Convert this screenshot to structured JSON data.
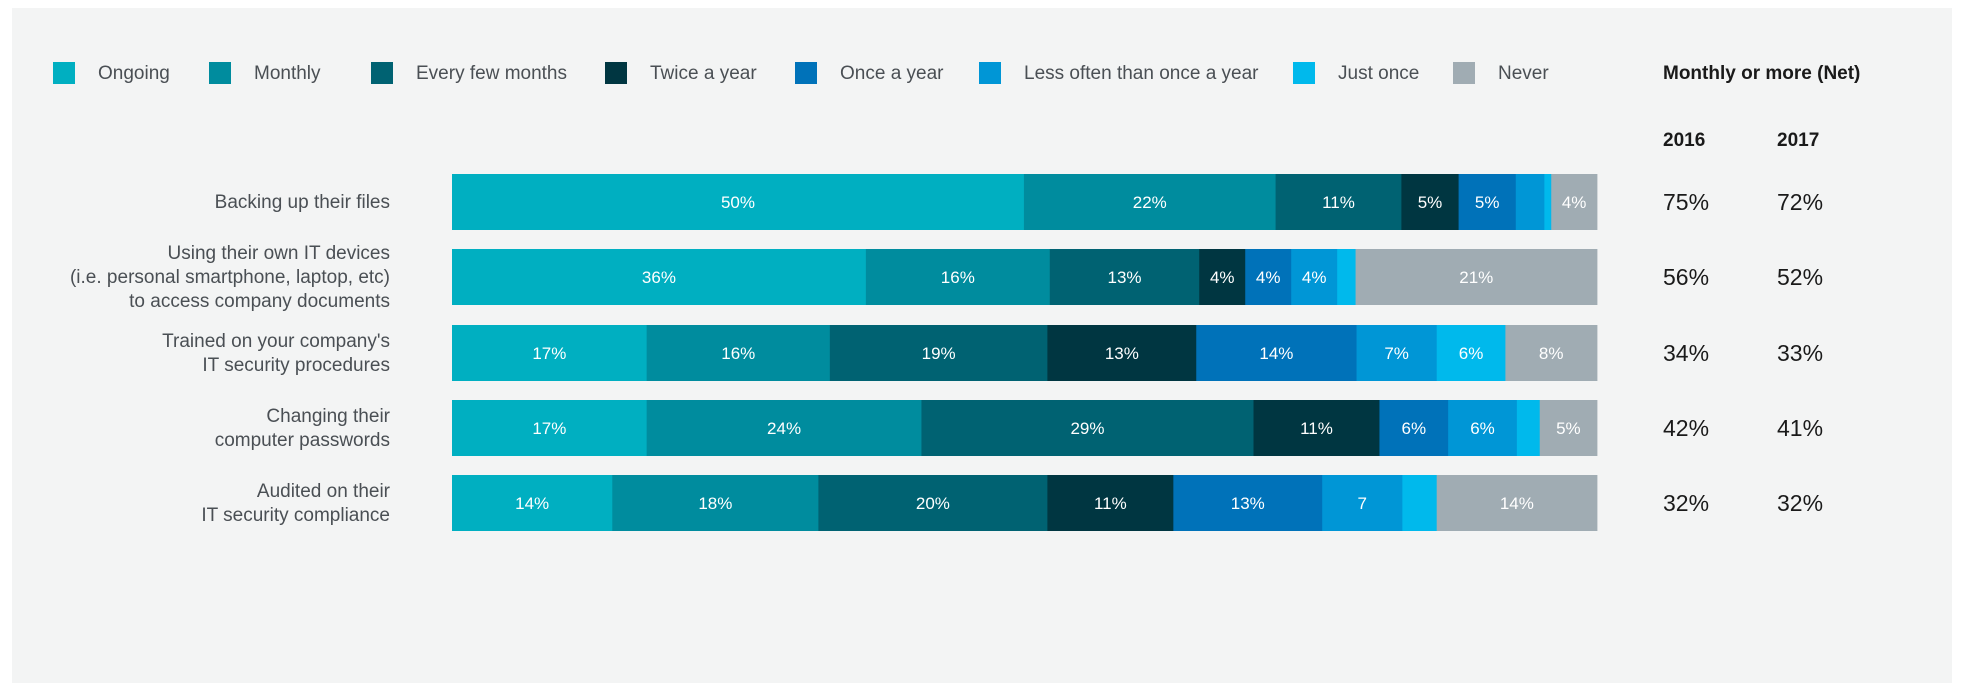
{
  "chart_data": {
    "type": "bar",
    "orientation": "horizontal",
    "stacked": true,
    "legend_position": "top",
    "grid": false,
    "legend": [
      {
        "name": "Ongoing",
        "color": "#00afc1"
      },
      {
        "name": "Monthly",
        "color": "#008c9e"
      },
      {
        "name": "Every few months",
        "color": "#006272"
      },
      {
        "name": "Twice a year",
        "color": "#003641"
      },
      {
        "name": "Once a year",
        "color": "#0072b9"
      },
      {
        "name": "Less often than once a year",
        "color": "#0096d6"
      },
      {
        "name": "Just once",
        "color": "#00b9ec"
      },
      {
        "name": "Never",
        "color": "#a0acb3"
      }
    ],
    "categories": [
      [
        "Backing up their files"
      ],
      [
        "Using their own IT devices",
        "(i.e. personal smartphone, laptop, etc)",
        "to access company documents"
      ],
      [
        "Trained on your company's",
        "IT security procedures"
      ],
      [
        "Changing their",
        "computer passwords"
      ],
      [
        "Audited on their",
        "IT security compliance"
      ]
    ],
    "rows": [
      {
        "values": [
          50,
          22,
          11,
          5,
          5,
          2.5,
          0.6,
          4
        ],
        "labels": [
          "50%",
          "22%",
          "11%",
          "5%",
          "5%",
          "",
          "",
          "4%"
        ]
      },
      {
        "values": [
          36,
          16,
          13,
          4,
          4,
          4,
          1.6,
          21
        ],
        "labels": [
          "36%",
          "16%",
          "13%",
          "4%",
          "4%",
          "4%",
          "",
          "21%"
        ]
      },
      {
        "values": [
          17,
          16,
          19,
          13,
          14,
          7,
          6,
          8
        ],
        "labels": [
          "17%",
          "16%",
          "19%",
          "13%",
          "14%",
          "7%",
          "6%",
          "8%"
        ]
      },
      {
        "values": [
          17,
          24,
          29,
          11,
          6,
          6,
          2,
          5
        ],
        "labels": [
          "17%",
          "24%",
          "29%",
          "11%",
          "6%",
          "6%",
          "",
          "5%"
        ]
      },
      {
        "values": [
          14,
          18,
          20,
          11,
          13,
          7,
          3,
          14
        ],
        "labels": [
          "14%",
          "18%",
          "20%",
          "11%",
          "13%",
          "7",
          "",
          "14%"
        ]
      }
    ],
    "net": {
      "title": "Monthly or more (Net)",
      "columns": [
        "2016",
        "2017"
      ],
      "values": [
        [
          "75%",
          "72%"
        ],
        [
          "56%",
          "52%"
        ],
        [
          "34%",
          "33%"
        ],
        [
          "42%",
          "41%"
        ],
        [
          "32%",
          "32%"
        ]
      ]
    }
  }
}
